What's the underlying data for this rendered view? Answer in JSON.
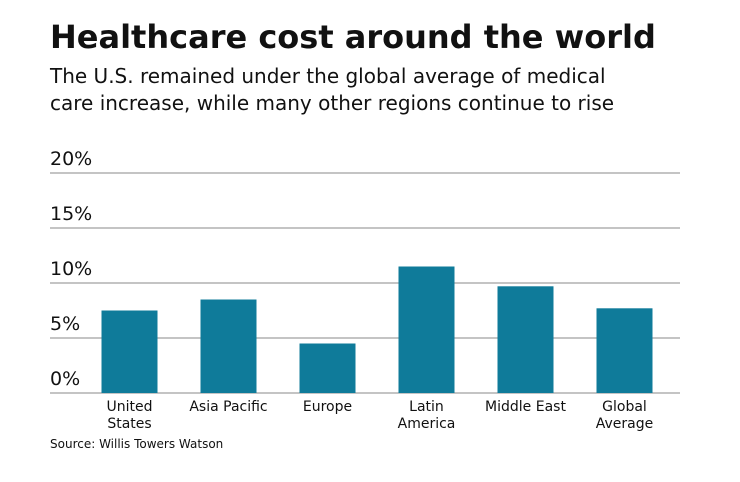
{
  "chart_data": {
    "type": "bar",
    "title": "Healthcare cost around the world",
    "subtitle": "The U.S. remained under the global average of medical\ncare increase, while many other regions continue to rise",
    "categories": [
      "United\nStates",
      "Asia Pacific",
      "Europe",
      "Latin\nAmerica",
      "Middle East",
      "Global\nAverage"
    ],
    "values": [
      7.5,
      8.5,
      4.5,
      11.5,
      9.7,
      7.7
    ],
    "color": "#0f7b9a",
    "ylim": [
      0,
      20
    ],
    "yticks": [
      {
        "value": 0,
        "label": "0%"
      },
      {
        "value": 5,
        "label": "5%"
      },
      {
        "value": 10,
        "label": "10%"
      },
      {
        "value": 15,
        "label": "15%"
      },
      {
        "value": 20,
        "label": "20%"
      }
    ],
    "grid": true,
    "source": "Source: Willis Towers Watson"
  }
}
